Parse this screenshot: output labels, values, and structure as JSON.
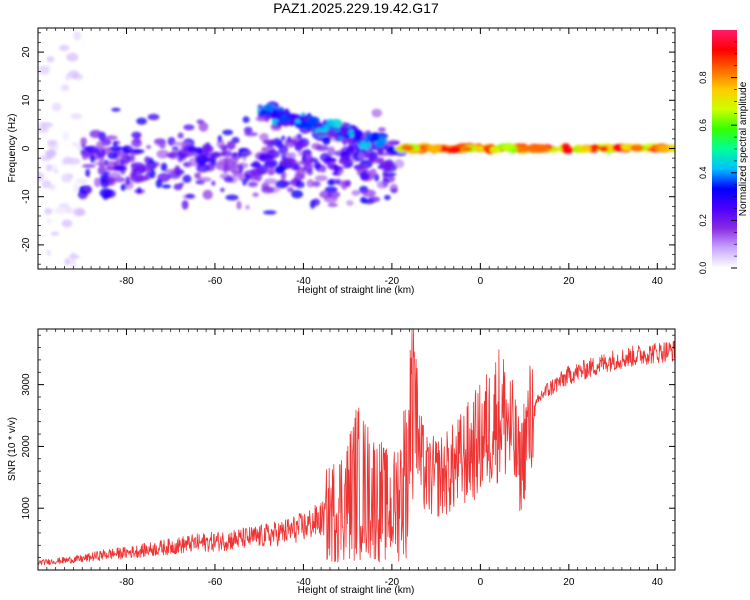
{
  "figure": {
    "title": "PAZ1.2025.229.19.42.G17"
  },
  "chart_data": [
    {
      "type": "heatmap",
      "xlabel": "Height of straight line (km)",
      "ylabel": "Frequency (Hz)",
      "xlim": [
        -100,
        44
      ],
      "ylim": [
        -25,
        25
      ],
      "x_ticks": [
        -80,
        -60,
        -40,
        -20,
        0,
        20,
        40
      ],
      "y_ticks": [
        -20,
        -10,
        0,
        10,
        20
      ],
      "colorbar": {
        "label": "Normalized spectral amplitude",
        "range": [
          0.0,
          1.0
        ],
        "ticks": [
          0.0,
          0.2,
          0.4,
          0.6,
          0.8
        ],
        "colormap": [
          "#ffffff",
          "#c9a7ff",
          "#8a2be2",
          "#4b00ff",
          "#0000ff",
          "#00bfff",
          "#00ff99",
          "#33ff00",
          "#ccff00",
          "#ffcc00",
          "#ff6600",
          "#ff0000",
          "#ff1a6e"
        ]
      },
      "features": [
        {
          "x_start": -100,
          "x_end": -90,
          "freq_center": 0,
          "freq_spread": 25,
          "amplitude": 0.05
        },
        {
          "x_start": -90,
          "x_end": -18,
          "freq_center": -3,
          "freq_spread": 6,
          "amplitude": 0.22
        },
        {
          "x_start": -50,
          "x_end": -22,
          "freq_center": 8,
          "freq_end": 1,
          "freq_spread": 1.2,
          "amplitude": 0.3
        },
        {
          "x_start": -18,
          "x_end": 44,
          "freq_center": 0,
          "freq_spread": 0.6,
          "amplitude": 0.95
        }
      ]
    },
    {
      "type": "line",
      "xlabel": "Height of straight line (km)",
      "ylabel": "SNR (10 * v/v)",
      "xlim": [
        -100,
        44
      ],
      "ylim": [
        0,
        3900
      ],
      "x_ticks": [
        -80,
        -60,
        -40,
        -20,
        0,
        20,
        40
      ],
      "y_ticks": [
        1000,
        2000,
        3000
      ],
      "color": "#ee3333",
      "series": [
        {
          "name": "",
          "x": [
            -100,
            -95,
            -90,
            -85,
            -80,
            -75,
            -70,
            -65,
            -60,
            -55,
            -50,
            -45,
            -40,
            -35,
            -30,
            -28,
            -25,
            -22,
            -20,
            -18,
            -16,
            -15,
            -14,
            -12,
            -10,
            -8,
            -6,
            -4,
            -2,
            0,
            2,
            4,
            6,
            8,
            9,
            10,
            12,
            14,
            16,
            18,
            20,
            22,
            24,
            26,
            28,
            30,
            32,
            34,
            36,
            38,
            40,
            42,
            44
          ],
          "y": [
            120,
            150,
            180,
            250,
            280,
            330,
            380,
            430,
            460,
            500,
            540,
            600,
            700,
            850,
            1150,
            1450,
            1250,
            1100,
            950,
            1300,
            1800,
            3250,
            1850,
            1500,
            1500,
            1550,
            1650,
            1800,
            1950,
            2100,
            2300,
            2550,
            2450,
            1950,
            1600,
            2050,
            2550,
            2850,
            2950,
            3050,
            3150,
            3200,
            3250,
            3300,
            3350,
            3400,
            3420,
            3450,
            3480,
            3500,
            3520,
            3540,
            3550
          ]
        }
      ]
    }
  ]
}
